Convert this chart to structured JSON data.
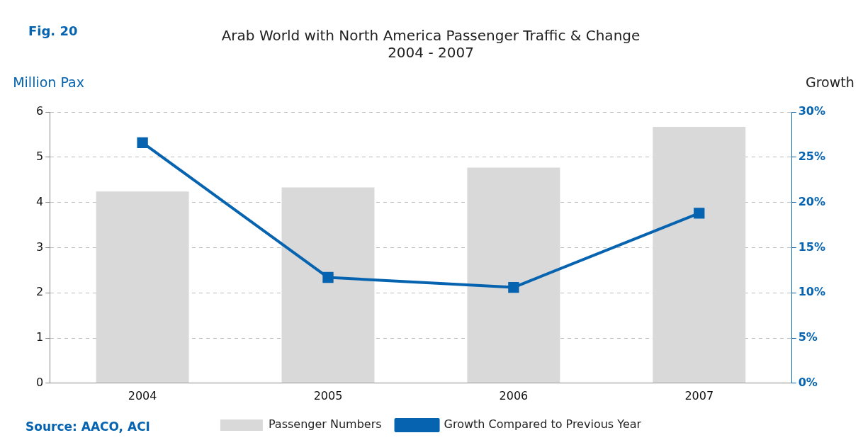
{
  "chart_data": {
    "type": "bar",
    "title": "Arab World with North America Passenger Traffic & Change",
    "subtitle": "2004 - 2007",
    "ylabel": "Million Pax",
    "y2label": "Growth",
    "annotations": [
      "Fig. 20",
      "Source: AACO, ACI"
    ],
    "categories": [
      "2004",
      "2005",
      "2006",
      "2007"
    ],
    "series": [
      {
        "name": "Passenger Numbers",
        "color": "#d9d9d9",
        "values": [
          4.24,
          4.33,
          4.77,
          5.67
        ]
      },
      {
        "name": "Growth Compared to Previous Year",
        "type": "line",
        "axis": "y2",
        "color": "#0563b0",
        "marker": "square",
        "values": [
          26.6,
          11.7,
          10.6,
          18.8
        ]
      }
    ],
    "ylim": [
      0,
      6
    ],
    "yticks": [
      0,
      1,
      2,
      3,
      4,
      5,
      6
    ],
    "y2lim": [
      0,
      30
    ],
    "y2ticks": [
      {
        "value": 0,
        "label": "0%"
      },
      {
        "value": 5,
        "label": "5%"
      },
      {
        "value": 10,
        "label": "10%"
      },
      {
        "value": 15,
        "label": "15%"
      },
      {
        "value": 20,
        "label": "20%"
      },
      {
        "value": 25,
        "label": "25%"
      },
      {
        "value": 30,
        "label": "30%"
      }
    ],
    "grid": "y",
    "legend": "bottom"
  }
}
